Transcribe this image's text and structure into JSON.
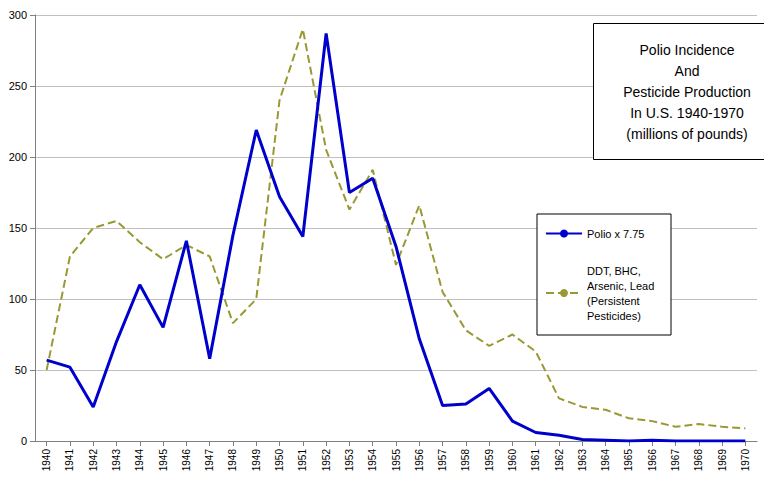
{
  "chart_data": {
    "type": "line",
    "title": "Polio Incidence\nAnd\nPesticide Production\nIn U.S. 1940-1970\n(millions of pounds)",
    "categories": [
      "1940",
      "1941",
      "1942",
      "1943",
      "1944",
      "1945",
      "1946",
      "1947",
      "1948",
      "1949",
      "1950",
      "1951",
      "1952",
      "1953",
      "1954",
      "1955",
      "1956",
      "1957",
      "1958",
      "1959",
      "1960",
      "1961",
      "1962",
      "1963",
      "1964",
      "1965",
      "1966",
      "1967",
      "1968",
      "1969",
      "1970"
    ],
    "series": [
      {
        "name": "Polio x 7.75",
        "color": "#0000cc",
        "line_style": "solid",
        "values": [
          57,
          52,
          24,
          70,
          110,
          80,
          141,
          58,
          145,
          219,
          172,
          144,
          287,
          175,
          185,
          137,
          72,
          25,
          26,
          37,
          14,
          6,
          4,
          1,
          0.5,
          0,
          0.5,
          0,
          0,
          0,
          0
        ]
      },
      {
        "name": "DDT, BHC, Arsenic, Lead (Persistent Pesticides)",
        "color": "#999933",
        "line_style": "dashed",
        "values": [
          50,
          130,
          150,
          155,
          140,
          128,
          138,
          130,
          83,
          100,
          240,
          290,
          205,
          163,
          191,
          124,
          166,
          105,
          78,
          67,
          75,
          63,
          30,
          24,
          22,
          16,
          14,
          10,
          12,
          10,
          9
        ]
      }
    ],
    "ylim": [
      0,
      300
    ],
    "yticks": [
      0,
      50,
      100,
      150,
      200,
      250,
      300
    ],
    "grid": true,
    "legend": "right"
  }
}
